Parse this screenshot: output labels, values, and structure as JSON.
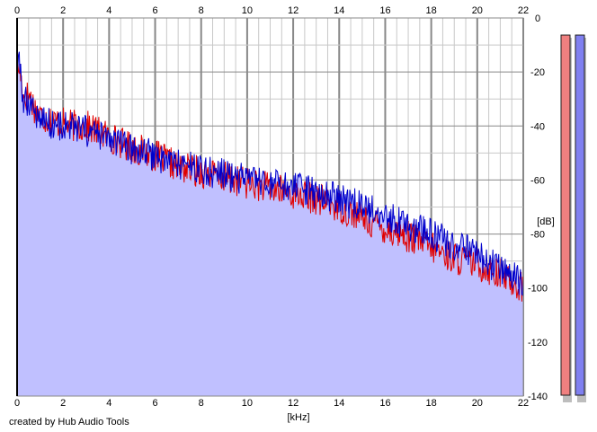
{
  "footer": {
    "credit": "created by Hub Audio Tools"
  },
  "chart_data": {
    "type": "area",
    "title": "",
    "xlabel": "[kHz]",
    "ylabel": "[dB]",
    "xlim": [
      0,
      22
    ],
    "ylim": [
      -140,
      0
    ],
    "x_ticks": [
      0,
      2,
      4,
      6,
      8,
      10,
      12,
      14,
      16,
      18,
      20,
      22
    ],
    "y_ticks": [
      0,
      -20,
      -40,
      -60,
      -80,
      -100,
      -120,
      -140
    ],
    "y_tick_labels": [
      "0",
      "-20",
      "-40",
      "-60",
      "-80",
      "-100",
      "-120",
      "-140"
    ],
    "grid": true,
    "legend": "none",
    "colors": {
      "left_channel": "#e00000",
      "right_channel": "#0000cc",
      "fill": "#c0c0ff",
      "grid_minor": "#c8c8c8",
      "grid_major": "#888888",
      "meter_left": "#f08080",
      "meter_right": "#8080f0"
    },
    "series": [
      {
        "channel": "left",
        "color": "#e00000",
        "x": [
          0,
          0.1,
          0.3,
          0.5,
          0.8,
          1,
          1.5,
          2,
          2.5,
          3,
          4,
          5,
          6,
          7,
          8,
          9,
          10,
          11,
          12,
          13,
          14,
          15,
          16,
          17,
          18,
          19,
          20,
          21,
          22
        ],
        "y": [
          -22,
          -18,
          -30,
          -28,
          -34,
          -36,
          -38,
          -39,
          -40,
          -40,
          -44,
          -48,
          -51,
          -55,
          -57,
          -59,
          -61,
          -63,
          -65,
          -67,
          -70,
          -74,
          -78,
          -81,
          -85,
          -89,
          -91,
          -95,
          -100
        ]
      },
      {
        "channel": "right",
        "color": "#0000cc",
        "x": [
          0,
          0.1,
          0.3,
          0.5,
          0.8,
          1,
          1.5,
          2,
          2.5,
          3,
          4,
          5,
          6,
          7,
          8,
          9,
          10,
          11,
          12,
          13,
          14,
          15,
          16,
          17,
          18,
          19,
          20,
          21,
          22
        ],
        "y": [
          -20,
          -17,
          -32,
          -30,
          -35,
          -37,
          -39,
          -40,
          -41,
          -42,
          -45,
          -49,
          -51,
          -54,
          -56,
          -58,
          -60,
          -62,
          -63,
          -65,
          -67,
          -70,
          -73,
          -77,
          -80,
          -84,
          -88,
          -93,
          -98
        ]
      }
    ],
    "meters": [
      {
        "channel": "left",
        "color": "#f08080",
        "level_db": -5
      },
      {
        "channel": "right",
        "color": "#8080f0",
        "level_db": -5
      }
    ]
  }
}
